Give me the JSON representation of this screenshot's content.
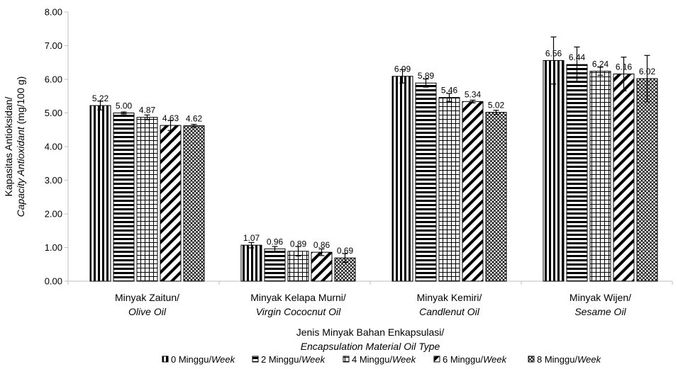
{
  "chart_data": {
    "type": "bar",
    "ylabel_line1": "Kapasitas Antioksidan/",
    "ylabel_line2_italic": "Capacity Antioxidant",
    "ylabel_line2_unit": " (mg/100 g)",
    "xlabel_line1": "Jenis Minyak Bahan Enkapsulasi/",
    "xlabel_line2": "Encapsulation Material Oil Type",
    "ylim": [
      0,
      8
    ],
    "yticks": [
      "0.00",
      "1.00",
      "2.00",
      "3.00",
      "4.00",
      "5.00",
      "6.00",
      "7.00",
      "8.00"
    ],
    "categories": [
      {
        "line1": "Minyak Zaitun/",
        "line2": "Olive Oil"
      },
      {
        "line1": "Minyak Kelapa Murni/",
        "line2": "Virgin Cococnut Oil"
      },
      {
        "line1": "Minyak Kemiri/",
        "line2": "Candlenut Oil"
      },
      {
        "line1": "Minyak Wijen/",
        "line2": "Sesame Oil"
      }
    ],
    "series": [
      {
        "name_prefix": "0 Minggu/",
        "name_suffix": "Week",
        "pattern": "vstripes",
        "values": [
          5.22,
          1.07,
          6.09,
          6.56
        ],
        "errors": [
          0.13,
          0.08,
          0.2,
          0.7
        ],
        "labels": [
          "5.22",
          "1.07",
          "6.09",
          "6.56"
        ]
      },
      {
        "name_prefix": "2 Minggu/",
        "name_suffix": "Week",
        "pattern": "hstripes",
        "values": [
          5.0,
          0.96,
          5.89,
          6.44
        ],
        "errors": [
          0.03,
          0.07,
          0.12,
          0.52
        ],
        "labels": [
          "5.00",
          "0.96",
          "5.89",
          "6.44"
        ]
      },
      {
        "name_prefix": "4 Minggu/",
        "name_suffix": "Week",
        "pattern": "grid",
        "values": [
          4.87,
          0.89,
          5.46,
          6.24
        ],
        "errors": [
          0.07,
          0.14,
          0.12,
          0.12
        ],
        "labels": [
          "4.87",
          "0.89",
          "5.46",
          "6.24"
        ]
      },
      {
        "name_prefix": "6 Minggu/",
        "name_suffix": "Week",
        "pattern": "diag",
        "values": [
          4.63,
          0.86,
          5.34,
          6.16
        ],
        "errors": [
          0.15,
          0.1,
          0.04,
          0.5
        ],
        "labels": [
          "4.63",
          "0.86",
          "5.34",
          "6.16"
        ]
      },
      {
        "name_prefix": "8 Minggu/",
        "name_suffix": "Week",
        "pattern": "dots",
        "values": [
          4.62,
          0.69,
          5.02,
          6.02
        ],
        "errors": [
          0.04,
          0.13,
          0.06,
          0.69
        ],
        "labels": [
          "4.62",
          "0.69",
          "5.02",
          "6.02"
        ]
      }
    ],
    "legend_position": "bottom",
    "grid": false
  },
  "colors": {
    "ink": "#000000",
    "background": "#ffffff",
    "axis": "#bfbfbf"
  }
}
